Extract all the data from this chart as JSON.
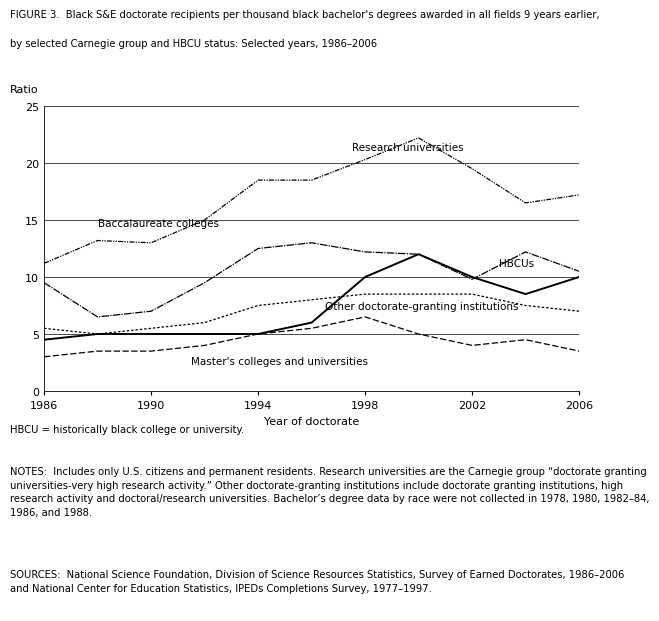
{
  "title_line1": "FIGURE 3.  Black S&E doctorate recipients per thousand black bachelor's degrees awarded in all fields 9 years earlier,",
  "title_line2": "by selected Carnegie group and HBCU status: Selected years, 1986–2006",
  "ylabel": "Ratio",
  "xlabel": "Year of doctorate",
  "years": [
    1986,
    1988,
    1990,
    1992,
    1994,
    1996,
    1998,
    2000,
    2002,
    2004,
    2006
  ],
  "research_universities": [
    11.2,
    13.2,
    13.0,
    15.0,
    18.5,
    18.5,
    20.3,
    22.2,
    19.5,
    16.5,
    17.2
  ],
  "baccalaureate_colleges": [
    9.5,
    6.5,
    7.0,
    9.5,
    12.5,
    13.0,
    12.2,
    12.0,
    9.8,
    12.2,
    10.5
  ],
  "hbcus": [
    4.5,
    5.0,
    5.0,
    5.0,
    5.0,
    6.0,
    10.0,
    12.0,
    10.0,
    8.5,
    10.0
  ],
  "other_doctorate_granting": [
    5.5,
    5.0,
    5.5,
    6.0,
    7.5,
    8.0,
    8.5,
    8.5,
    8.5,
    7.5,
    7.0
  ],
  "masters_colleges": [
    3.0,
    3.5,
    3.5,
    4.0,
    5.0,
    5.5,
    6.5,
    5.0,
    4.0,
    4.5,
    3.5
  ],
  "ylim": [
    0,
    25
  ],
  "xlim": [
    1986,
    2006
  ],
  "yticks": [
    0,
    5,
    10,
    15,
    20,
    25
  ],
  "xticks": [
    1986,
    1990,
    1994,
    1998,
    2002,
    2006
  ],
  "hbcu_abbrev": "HBCU = historically black college or university.",
  "notes": "NOTES:  Includes only U.S. citizens and permanent residents. Research universities are the Carnegie group “doctorate granting\nuniversities-very high research activity.” Other doctorate-granting institutions include doctorate granting institutions, high\nresearch activity and doctoral/research universities. Bachelor’s degree data by race were not collected in 1978, 1980, 1982–84,\n1986, and 1988.",
  "sources": "SOURCES:  National Science Foundation, Division of Science Resources Statistics, Survey of Earned Doctorates, 1986–2006\nand National Center for Education Statistics, IPEDs Completions Survey, 1977–1997.",
  "label_research": "Research universities",
  "label_baccalaureate": "Baccalaureate colleges",
  "label_hbcus": "HBCUs",
  "label_other": "Other doctorate-granting institutions",
  "label_masters": "Master's colleges and universities"
}
